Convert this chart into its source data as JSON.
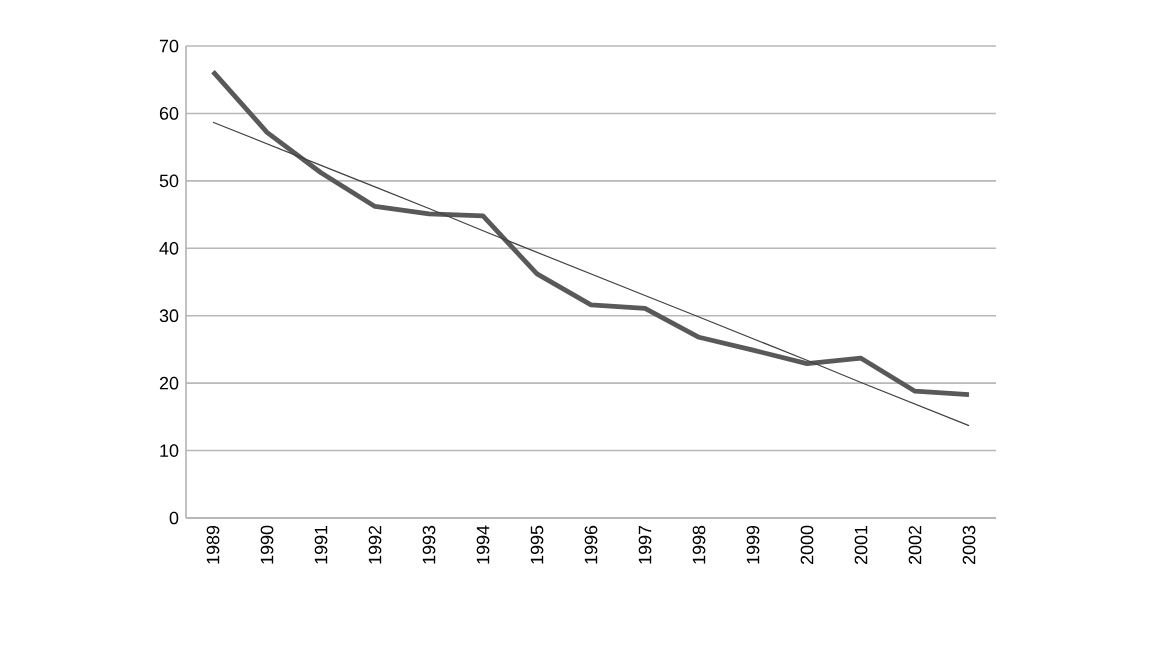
{
  "chart_data": {
    "type": "line",
    "categories": [
      "1989",
      "1990",
      "1991",
      "1992",
      "1993",
      "1994",
      "1995",
      "1996",
      "1997",
      "1998",
      "1999",
      "2000",
      "2001",
      "2002",
      "2003"
    ],
    "series": [
      {
        "color": "#595959",
        "values": [
          66.2,
          57.2,
          51.2,
          46.2,
          45.1,
          44.8,
          36.2,
          31.6,
          31.1,
          26.8,
          24.9,
          22.9,
          23.7,
          18.8,
          18.3
        ]
      },
      {
        "color": "#404040",
        "values": [
          58.7,
          55.5,
          52.3,
          49.1,
          45.9,
          42.6,
          39.4,
          36.2,
          33.0,
          29.8,
          26.6,
          23.4,
          20.1,
          16.9,
          13.7
        ]
      }
    ],
    "ylim": [
      0,
      70
    ],
    "yticks": [
      0,
      10,
      20,
      30,
      40,
      50,
      60,
      70
    ],
    "grid": "y",
    "legend": false,
    "marker": "none",
    "line_style": "solid"
  }
}
